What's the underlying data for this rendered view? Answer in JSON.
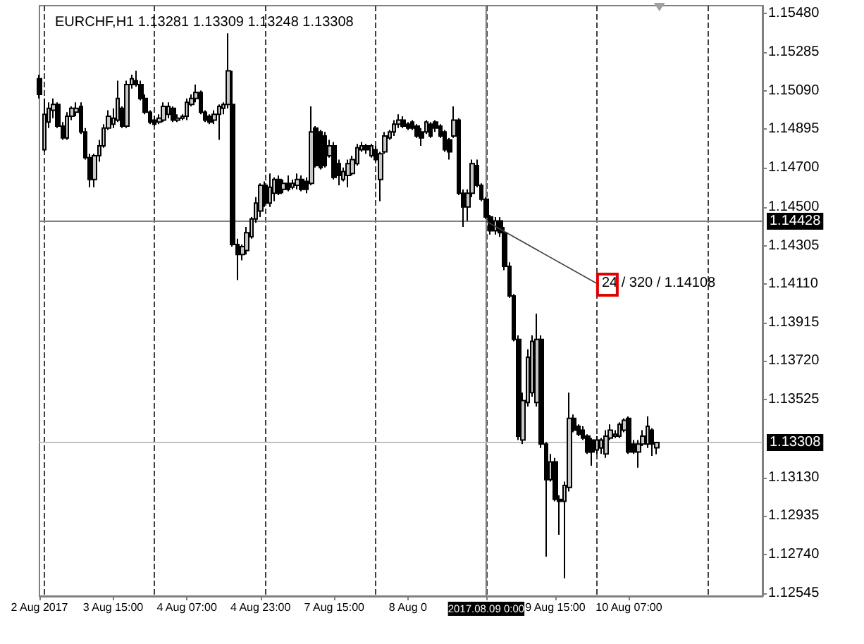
{
  "chart_data": {
    "type": "candlestick",
    "title": "EURCHF,H1 1.13281 1.13309 1.13248 1.13308",
    "grid": "x",
    "categories": [
      "2 Aug 2017",
      null,
      null,
      null,
      null,
      null,
      null,
      null,
      null,
      null,
      null,
      null,
      null,
      null,
      null,
      null,
      "3 Aug 15:00",
      null,
      null,
      null,
      null,
      null,
      null,
      null,
      null,
      null,
      null,
      null,
      null,
      null,
      null,
      null,
      "4 Aug 07:00",
      null,
      null,
      null,
      null,
      null,
      null,
      null,
      null,
      null,
      null,
      null,
      null,
      null,
      null,
      null,
      "4 Aug 23:00",
      null,
      null,
      null,
      null,
      null,
      null,
      null,
      null,
      null,
      null,
      null,
      null,
      null,
      null,
      null,
      "7 Aug 15:00",
      null,
      null,
      null,
      null,
      null,
      null,
      null,
      null,
      null,
      null,
      null,
      null,
      null,
      null,
      null,
      "8 Aug 0",
      null,
      null,
      null,
      null,
      null,
      null,
      null,
      null,
      null,
      null,
      null,
      null,
      null,
      null,
      null,
      null,
      "2017.08.09 0:00",
      null,
      null,
      null,
      null,
      null,
      null,
      null,
      null,
      null,
      null,
      null,
      null,
      null,
      null,
      "9 Aug 15:00",
      null,
      null,
      null,
      null,
      null,
      null,
      null,
      null,
      null,
      null,
      null,
      null,
      null,
      null,
      null,
      "10 Aug 07:00",
      null,
      null,
      null,
      null,
      null,
      null,
      null,
      null,
      null,
      null,
      null,
      null,
      null,
      null,
      null,
      null,
      null,
      null,
      null,
      null,
      null,
      null,
      null,
      null,
      null,
      null,
      null,
      null,
      null
    ],
    "ohlc": [
      [
        1.1515,
        1.1517,
        1.1505,
        1.1507
      ],
      [
        1.1479,
        1.1505,
        1.1478,
        1.1497
      ],
      [
        1.1493,
        1.1503,
        1.149,
        1.15
      ],
      [
        1.1499,
        1.1505,
        1.1495,
        1.1502
      ],
      [
        1.1502,
        1.1503,
        1.149,
        1.1491
      ],
      [
        1.1491,
        1.1493,
        1.1484,
        1.1485
      ],
      [
        1.1485,
        1.1498,
        1.1484,
        1.1496
      ],
      [
        1.1496,
        1.1501,
        1.1494,
        1.15
      ],
      [
        1.1498,
        1.1503,
        1.1496,
        1.15
      ],
      [
        1.1501,
        1.1503,
        1.1487,
        1.1488
      ],
      [
        1.1488,
        1.149,
        1.1474,
        1.1475
      ],
      [
        1.1475,
        1.1477,
        1.146,
        1.1464
      ],
      [
        1.1464,
        1.1477,
        1.146,
        1.1476
      ],
      [
        1.1476,
        1.1484,
        1.1473,
        1.1481
      ],
      [
        1.1481,
        1.1492,
        1.148,
        1.149
      ],
      [
        1.149,
        1.1499,
        1.1489,
        1.1496
      ],
      [
        1.1492,
        1.15,
        1.149,
        1.1495
      ],
      [
        1.1494,
        1.1514,
        1.1493,
        1.1505
      ],
      [
        1.15,
        1.1501,
        1.149,
        1.1491
      ],
      [
        1.1491,
        1.1514,
        1.149,
        1.1512
      ],
      [
        1.1512,
        1.1517,
        1.151,
        1.1515
      ],
      [
        1.1514,
        1.1519,
        1.1511,
        1.1512
      ],
      [
        1.1512,
        1.1514,
        1.1504,
        1.1505
      ],
      [
        1.1505,
        1.1507,
        1.1497,
        1.1498
      ],
      [
        1.1498,
        1.1499,
        1.1492,
        1.1493
      ],
      [
        1.1494,
        1.1496,
        1.1491,
        1.1492
      ],
      [
        1.1493,
        1.1497,
        1.1492,
        1.1495
      ],
      [
        1.1494,
        1.1503,
        1.1493,
        1.1501
      ],
      [
        1.1497,
        1.1503,
        1.1495,
        1.1501
      ],
      [
        1.15,
        1.1501,
        1.1493,
        1.1494
      ],
      [
        1.1494,
        1.1497,
        1.1493,
        1.1495
      ],
      [
        1.1495,
        1.1497,
        1.1494,
        1.1496
      ],
      [
        1.1496,
        1.1505,
        1.1494,
        1.1503
      ],
      [
        1.1502,
        1.1507,
        1.1501,
        1.1505
      ],
      [
        1.1505,
        1.1512,
        1.1503,
        1.1508
      ],
      [
        1.1508,
        1.1509,
        1.1497,
        1.1498
      ],
      [
        1.1498,
        1.1499,
        1.1493,
        1.1494
      ],
      [
        1.1496,
        1.1497,
        1.1492,
        1.1493
      ],
      [
        1.1494,
        1.1499,
        1.1492,
        1.1497
      ],
      [
        1.1497,
        1.1502,
        1.1484,
        1.1501
      ],
      [
        1.15,
        1.1503,
        1.1497,
        1.1502
      ],
      [
        1.1502,
        1.1538,
        1.15,
        1.1519
      ],
      [
        1.1502,
        1.1519,
        1.143,
        1.1431
      ],
      [
        1.1431,
        1.1434,
        1.1413,
        1.1426
      ],
      [
        1.1426,
        1.1431,
        1.1423,
        1.143
      ],
      [
        1.1428,
        1.144,
        1.1426,
        1.1437
      ],
      [
        1.1435,
        1.1445,
        1.1434,
        1.1444
      ],
      [
        1.1444,
        1.1455,
        1.1442,
        1.1452
      ],
      [
        1.1448,
        1.1462,
        1.1445,
        1.1461
      ],
      [
        1.1461,
        1.1463,
        1.145,
        1.1452
      ],
      [
        1.1452,
        1.1467,
        1.145,
        1.146
      ],
      [
        1.1457,
        1.1465,
        1.1453,
        1.1464
      ],
      [
        1.1464,
        1.1466,
        1.1456,
        1.1457
      ],
      [
        1.1459,
        1.1464,
        1.1457,
        1.1462
      ],
      [
        1.1462,
        1.1466,
        1.1458,
        1.1459
      ],
      [
        1.146,
        1.1464,
        1.1459,
        1.1462
      ],
      [
        1.1461,
        1.1467,
        1.1459,
        1.1464
      ],
      [
        1.1464,
        1.1466,
        1.1458,
        1.1459
      ],
      [
        1.1463,
        1.1465,
        1.1457,
        1.1459
      ],
      [
        1.1462,
        1.1501,
        1.1461,
        1.1488
      ],
      [
        1.149,
        1.1491,
        1.147,
        1.1471
      ],
      [
        1.1488,
        1.1489,
        1.1469,
        1.147
      ],
      [
        1.1486,
        1.1488,
        1.147,
        1.1471
      ],
      [
        1.1476,
        1.1484,
        1.1475,
        1.1481
      ],
      [
        1.1481,
        1.1483,
        1.1464,
        1.1465
      ],
      [
        1.1472,
        1.1474,
        1.1461,
        1.1466
      ],
      [
        1.1464,
        1.147,
        1.1463,
        1.1468
      ],
      [
        1.1466,
        1.1474,
        1.146,
        1.1472
      ],
      [
        1.1467,
        1.1476,
        1.1466,
        1.1474
      ],
      [
        1.1472,
        1.1482,
        1.1471,
        1.148
      ],
      [
        1.1479,
        1.1483,
        1.1478,
        1.1481
      ],
      [
        1.1481,
        1.1482,
        1.1477,
        1.1479
      ],
      [
        1.1476,
        1.1482,
        1.1475,
        1.1481
      ],
      [
        1.1479,
        1.1481,
        1.1473,
        1.1474
      ],
      [
        1.1464,
        1.1478,
        1.1453,
        1.1477
      ],
      [
        1.1478,
        1.1488,
        1.1477,
        1.1486
      ],
      [
        1.1485,
        1.1489,
        1.1484,
        1.1488
      ],
      [
        1.1488,
        1.1494,
        1.1486,
        1.1492
      ],
      [
        1.1492,
        1.1497,
        1.149,
        1.1494
      ],
      [
        1.1494,
        1.1496,
        1.149,
        1.1491
      ],
      [
        1.1492,
        1.1493,
        1.1489,
        1.149
      ],
      [
        1.1493,
        1.1494,
        1.1489,
        1.149
      ],
      [
        1.1491,
        1.1492,
        1.1485,
        1.1486
      ],
      [
        1.1488,
        1.149,
        1.1481,
        1.1485
      ],
      [
        1.1488,
        1.1494,
        1.1487,
        1.1493
      ],
      [
        1.1492,
        1.1493,
        1.1485,
        1.1486
      ],
      [
        1.1493,
        1.1494,
        1.1488,
        1.149
      ],
      [
        1.1491,
        1.1492,
        1.1485,
        1.1486
      ],
      [
        1.1488,
        1.1489,
        1.1478,
        1.1479
      ],
      [
        1.1484,
        1.1485,
        1.1474,
        1.1478
      ],
      [
        1.1486,
        1.1501,
        1.1485,
        1.1494
      ],
      [
        1.1494,
        1.1495,
        1.1456,
        1.1457
      ],
      [
        1.1457,
        1.1459,
        1.144,
        1.145
      ],
      [
        1.145,
        1.1459,
        1.1443,
        1.1457
      ],
      [
        1.1457,
        1.1474,
        1.1455,
        1.1472
      ],
      [
        1.1471,
        1.1474,
        1.146,
        1.1461
      ],
      [
        1.1461,
        1.1462,
        1.1453,
        1.1454
      ],
      [
        1.1454,
        1.1455,
        1.1444,
        1.1445
      ],
      [
        1.1445,
        1.1446,
        1.1436,
        1.1438
      ],
      [
        1.1438,
        1.1445,
        1.1436,
        1.1443
      ],
      [
        1.1443,
        1.1445,
        1.1435,
        1.1437
      ],
      [
        1.1437,
        1.144,
        1.1418,
        1.142
      ],
      [
        1.142,
        1.1422,
        1.1404,
        1.1405
      ],
      [
        1.1405,
        1.1406,
        1.1382,
        1.1383
      ],
      [
        1.1383,
        1.1385,
        1.1332,
        1.1334
      ],
      [
        1.1332,
        1.1356,
        1.133,
        1.1352
      ],
      [
        1.1351,
        1.1378,
        1.1349,
        1.1374
      ],
      [
        1.1356,
        1.1385,
        1.1354,
        1.1382
      ],
      [
        1.1351,
        1.1396,
        1.1349,
        1.1383
      ],
      [
        1.1383,
        1.1385,
        1.1328,
        1.133
      ],
      [
        1.133,
        1.1331,
        1.1273,
        1.1312
      ],
      [
        1.1312,
        1.1325,
        1.1311,
        1.1321
      ],
      [
        1.1321,
        1.1323,
        1.1301,
        1.1302
      ],
      [
        1.1302,
        1.1304,
        1.1284,
        1.1301
      ],
      [
        1.1301,
        1.1311,
        1.1262,
        1.1309
      ],
      [
        1.1308,
        1.1356,
        1.1306,
        1.1343
      ],
      [
        1.1343,
        1.1345,
        1.1336,
        1.1337
      ],
      [
        1.1339,
        1.134,
        1.1334,
        1.1335
      ],
      [
        1.1337,
        1.1339,
        1.1332,
        1.1333
      ],
      [
        1.1334,
        1.1335,
        1.1325,
        1.1326
      ],
      [
        1.1332,
        1.1333,
        1.1319,
        1.1326
      ],
      [
        1.1327,
        1.1334,
        1.1325,
        1.1332
      ],
      [
        1.1328,
        1.1333,
        1.1325,
        1.1332
      ],
      [
        1.1325,
        1.1337,
        1.1323,
        1.1334
      ],
      [
        1.1333,
        1.134,
        1.1332,
        1.1337
      ],
      [
        1.1334,
        1.1337,
        1.1333,
        1.1335
      ],
      [
        1.1334,
        1.1341,
        1.1333,
        1.134
      ],
      [
        1.1337,
        1.1343,
        1.1336,
        1.1342
      ],
      [
        1.1343,
        1.1344,
        1.1325,
        1.1326
      ],
      [
        1.133,
        1.1332,
        1.1325,
        1.1326
      ],
      [
        1.1326,
        1.1332,
        1.1318,
        1.133
      ],
      [
        1.133,
        1.1337,
        1.1329,
        1.1334
      ],
      [
        1.133,
        1.1344,
        1.1328,
        1.1339
      ],
      [
        1.1337,
        1.1338,
        1.1324,
        1.133
      ],
      [
        1.13281,
        1.13309,
        1.13248,
        1.13308
      ],
      null,
      null,
      null,
      null,
      null,
      null,
      null,
      null,
      null,
      null,
      null,
      null,
      null,
      null,
      null,
      null,
      null,
      null,
      null,
      null,
      null,
      null,
      null
    ],
    "ylim": [
      1.1253,
      1.1552
    ],
    "yticks": [
      {
        "value": 1.1548,
        "label": "1.15480"
      },
      1.15285,
      {
        "value": 1.1509,
        "label": "1.15090"
      },
      1.14895,
      {
        "value": 1.147,
        "label": "1.14700"
      },
      {
        "value": 1.145,
        "label": "1.14500"
      },
      1.14305,
      {
        "value": 1.1411,
        "label": "1.14110"
      },
      1.13915,
      {
        "value": 1.1372,
        "label": "1.13720"
      },
      1.13525,
      {
        "value": 1.1313,
        "label": "1.13130"
      },
      1.12935,
      {
        "value": 1.1274,
        "label": "1.12740"
      },
      1.12545
    ],
    "ref_lines": [
      {
        "axis": "x",
        "value": "2017.08.09 0:00",
        "color": "#808080"
      },
      {
        "axis": "y",
        "value": 1.14428,
        "label": "1.14428",
        "color": "#808080"
      },
      {
        "axis": "y",
        "value": 1.13308,
        "label": "1.13308",
        "color": "#c0c0c0"
      }
    ],
    "annotations": [
      {
        "text": "24 / 320 / 1.14108",
        "x": "2017.08.09 0:00",
        "y": 1.14428
      }
    ]
  }
}
